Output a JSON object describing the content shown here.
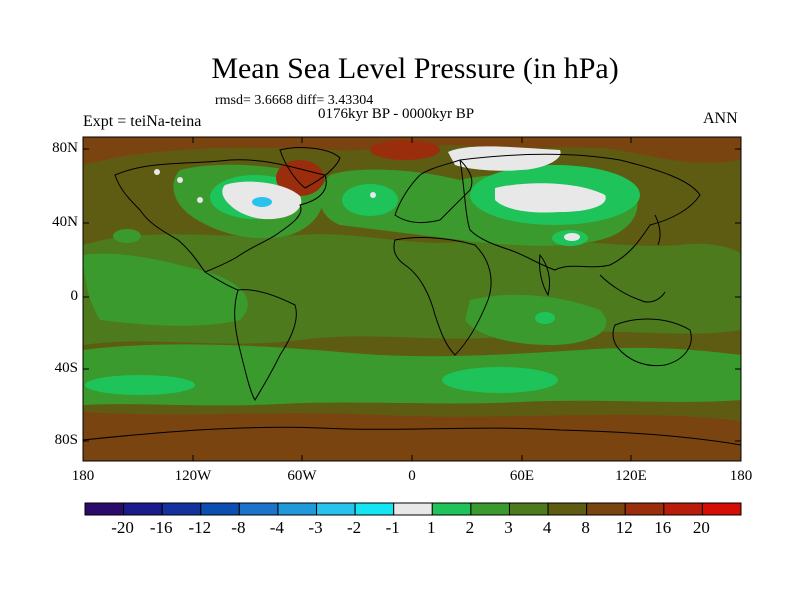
{
  "title": "Mean Sea Level Pressure (in hPa)",
  "stats_text": "rmsd= 3.6668 diff= 3.43304",
  "period_text": "0176kyr BP - 0000kyr BP",
  "experiment_text": "Expt = teiNa-teina",
  "season_text": "ANN",
  "lat_labels": [
    "80N",
    "40N",
    "0",
    "40S",
    "80S"
  ],
  "lon_labels": [
    "180",
    "120W",
    "60W",
    "0",
    "60E",
    "120E",
    "180"
  ],
  "colorbar": {
    "colors": [
      "#2a0b6b",
      "#1b1b8c",
      "#14329e",
      "#0b4fb0",
      "#1b74c9",
      "#1f99d9",
      "#27c3ec",
      "#13e6f2",
      "#e8e8e8",
      "#1ec45a",
      "#3a9a2e",
      "#4c7a1c",
      "#5e5c12",
      "#7a4410",
      "#9a2e0c",
      "#b81c0a",
      "#d40e06"
    ],
    "labels": [
      "-20",
      "-16",
      "-12",
      "-8",
      "-4",
      "-3",
      "-2",
      "-1",
      "1",
      "2",
      "3",
      "4",
      "8",
      "12",
      "16",
      "20"
    ]
  },
  "map_colors": {
    "base": "#5e5c12",
    "low_green": "#4c7a1c",
    "mid_green": "#3a9a2e",
    "bright_green": "#1ec45a",
    "high_brown": "#7a4410",
    "ice_white": "#e8e8e8",
    "cyan": "#27c3ec"
  }
}
